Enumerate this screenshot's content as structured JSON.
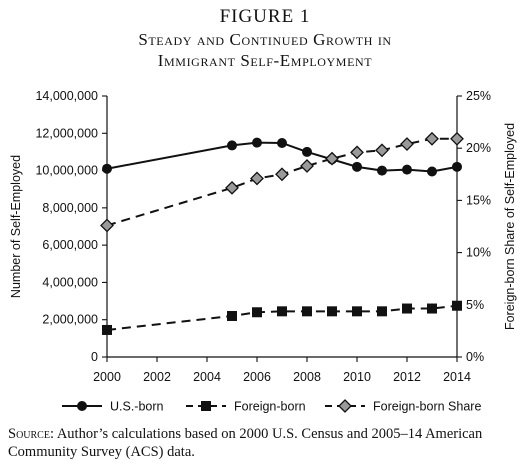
{
  "figure": {
    "label": "FIGURE 1",
    "title_line1": "Steady and Continued Growth in",
    "title_line2": "Immigrant Self-Employment"
  },
  "source": {
    "lead": "Source",
    "text": ": Author’s calculations based on 2000 U.S. Census and 2005–14 American Community Survey (ACS) data."
  },
  "chart_data": {
    "type": "line",
    "title": "Steady and Continued Growth in Immigrant Self-Employment",
    "xlabel": "",
    "ylabel": "Number of Self-Employed",
    "y2label": "Foreign-born Share of Self-Employed",
    "xlim": [
      2000,
      2014
    ],
    "ylim": [
      0,
      14000000
    ],
    "y2lim": [
      0,
      25
    ],
    "x_ticks": [
      "2000",
      "2002",
      "2004",
      "2006",
      "2008",
      "2010",
      "2012",
      "2014"
    ],
    "y_ticks": [
      "0",
      "2,000,000",
      "4,000,000",
      "6,000,000",
      "8,000,000",
      "10,000,000",
      "12,000,000",
      "14,000,000"
    ],
    "y2_ticks": [
      "0%",
      "5%",
      "10%",
      "15%",
      "20%",
      "25%"
    ],
    "grid": false,
    "legend_position": "bottom",
    "series": [
      {
        "name": "U.S.-born",
        "axis": "left",
        "style": "solid",
        "marker": "circle",
        "x": [
          2000,
          2005,
          2006,
          2007,
          2008,
          2009,
          2010,
          2011,
          2012,
          2013,
          2014
        ],
        "values": [
          10100000,
          11350000,
          11500000,
          11480000,
          11000000,
          10600000,
          10200000,
          10000000,
          10050000,
          9950000,
          10200000
        ]
      },
      {
        "name": "Foreign-born",
        "axis": "left",
        "style": "dashed",
        "marker": "square",
        "x": [
          2000,
          2005,
          2006,
          2007,
          2008,
          2009,
          2010,
          2011,
          2012,
          2013,
          2014
        ],
        "values": [
          1450000,
          2200000,
          2400000,
          2450000,
          2450000,
          2450000,
          2450000,
          2450000,
          2600000,
          2600000,
          2750000
        ]
      },
      {
        "name": "Foreign-born Share",
        "axis": "right",
        "style": "dashed",
        "marker": "diamond",
        "x": [
          2000,
          2005,
          2006,
          2007,
          2008,
          2009,
          2010,
          2011,
          2012,
          2013,
          2014
        ],
        "values": [
          12.6,
          16.2,
          17.1,
          17.5,
          18.3,
          19.0,
          19.6,
          19.8,
          20.4,
          20.9,
          20.9
        ]
      }
    ],
    "colors": {
      "line": "#111111",
      "diamond_fill": "#9a9a9a"
    }
  }
}
